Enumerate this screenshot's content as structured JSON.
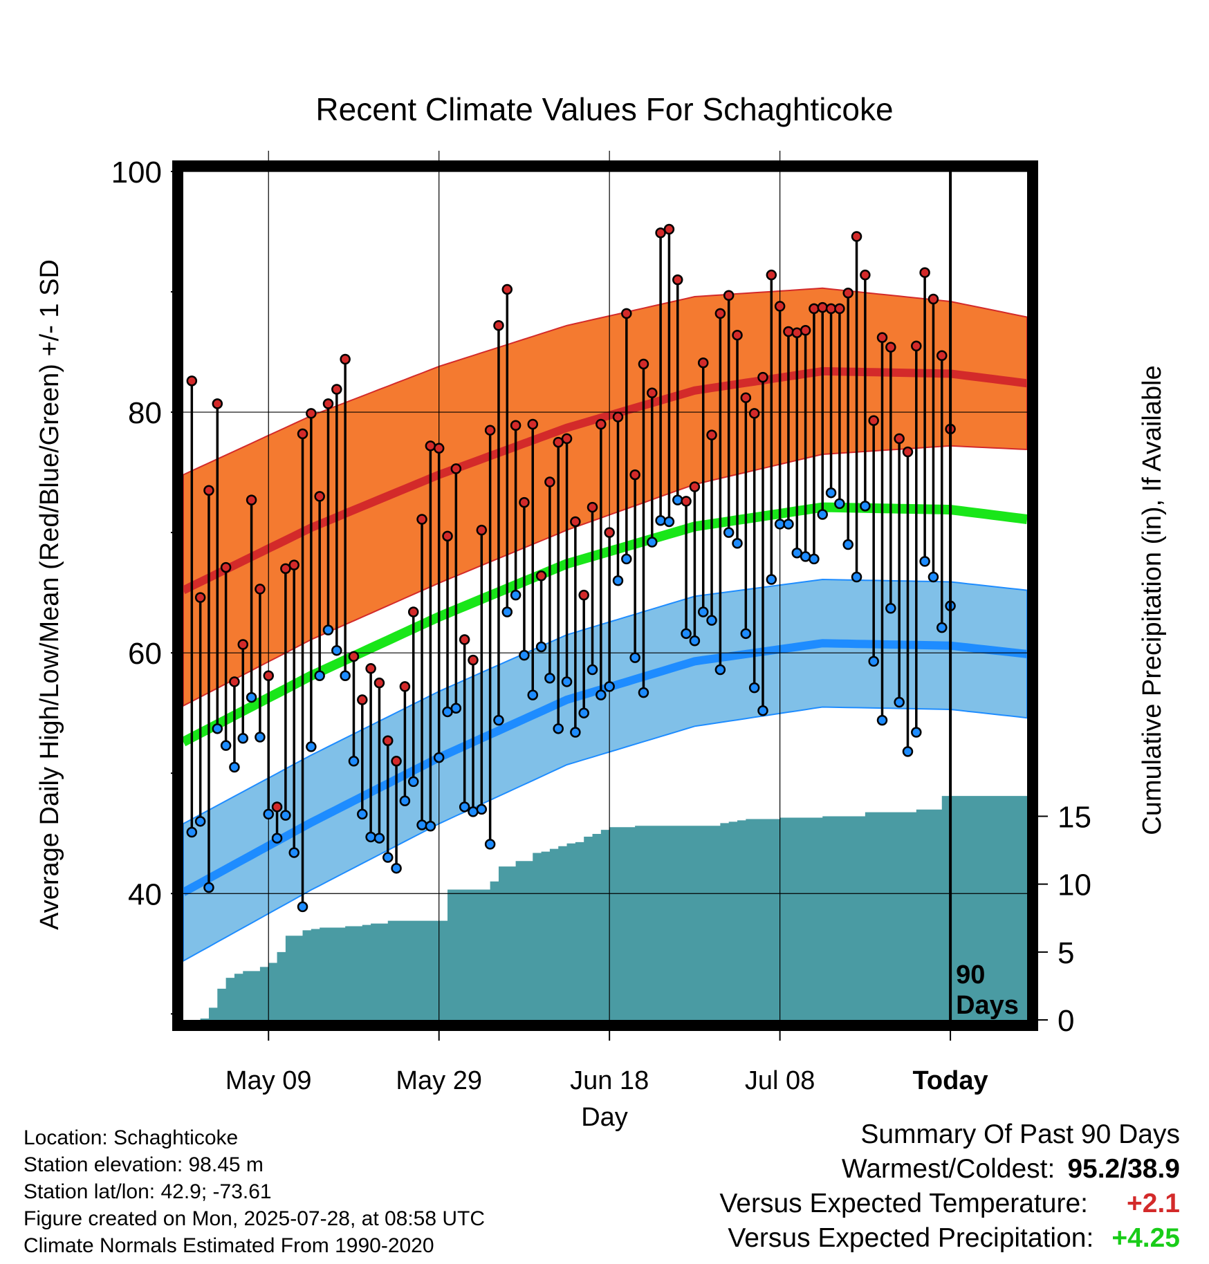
{
  "title": "Recent Climate Values For Schaghticoke",
  "colors": {
    "high_band": "#f47a30",
    "high_line": "#d32a2a",
    "low_band": "#80c0e8",
    "low_line": "#1e8cff",
    "mean_line": "#19e619",
    "precip": "#4a9ba3",
    "high_dot": "#d32a2a",
    "low_dot": "#1e8cff",
    "warm": "#d32a2a",
    "wet": "#19cc19"
  },
  "info": {
    "location": "Location: Schaghticoke",
    "elevation": "Station elevation: 98.45 m",
    "latlon": "Station lat/lon: 42.9; -73.61",
    "created": "Figure created on Mon, 2025-07-28, at 08:58 UTC",
    "normals": "Climate Normals Estimated From 1990-2020"
  },
  "summary": {
    "heading": "Summary Of Past 90 Days",
    "warmest_label": "Warmest/Coldest:",
    "warmest_value": "95.2/38.9",
    "temp_label": "Versus Expected Temperature:",
    "temp_value": "+2.1",
    "precip_label": "Versus Expected Precipitation:",
    "precip_value": "+4.25"
  },
  "chart_data": {
    "type": "line",
    "title": "Recent Climate Values For Schaghticoke",
    "xlabel": "Day",
    "ylabel": "Average Daily High/Low/Mean (Red/Blue/Green) +/- 1 SD",
    "y2label": "Cumulative Precipitation (in), If Available",
    "xlim": [
      -90,
      9
    ],
    "ylim": [
      29.5,
      100
    ],
    "y2lim": [
      0,
      62.5
    ],
    "x_ticks": [
      {
        "x": -80,
        "label": "May 09"
      },
      {
        "x": -60,
        "label": "May 29"
      },
      {
        "x": -40,
        "label": "Jun 18"
      },
      {
        "x": -20,
        "label": "Jul 08"
      },
      {
        "x": 0,
        "label": "Today"
      }
    ],
    "y_ticks": [
      40,
      60,
      80,
      100
    ],
    "y2_ticks": [
      0,
      5,
      10,
      15
    ],
    "today_marker": "90\nDays",
    "grid": true,
    "normals": {
      "x": [
        -90,
        -75,
        -60,
        -45,
        -30,
        -15,
        0,
        9
      ],
      "high_mean": [
        65.2,
        70.4,
        74.8,
        78.7,
        81.8,
        83.4,
        83.2,
        82.4
      ],
      "high_sd": [
        9.6,
        9.3,
        9.0,
        8.5,
        7.8,
        6.9,
        6.0,
        5.5
      ],
      "low_mean": [
        40.1,
        45.9,
        51.3,
        56.1,
        59.3,
        60.8,
        60.6,
        59.9
      ],
      "low_sd": [
        5.7,
        5.6,
        5.5,
        5.4,
        5.4,
        5.3,
        5.3,
        5.3
      ],
      "mean": [
        52.6,
        58.1,
        63.0,
        67.4,
        70.5,
        72.1,
        71.9,
        71.1
      ]
    },
    "series": [
      {
        "name": "High",
        "values": [
          82.6,
          64.6,
          73.5,
          80.7,
          67.1,
          57.6,
          60.7,
          72.7,
          65.3,
          58.1,
          47.2,
          67.0,
          67.3,
          78.2,
          79.9,
          73.0,
          80.7,
          81.9,
          84.4,
          59.7,
          56.1,
          58.7,
          57.5,
          52.7,
          51.0,
          57.2,
          63.4,
          71.1,
          77.2,
          77.0,
          69.7,
          75.3,
          61.1,
          59.4,
          70.2,
          78.5,
          87.2,
          90.2,
          78.9,
          72.5,
          79.0,
          66.4,
          74.2,
          77.5,
          77.8,
          70.9,
          64.8,
          72.1,
          79.0,
          70.0,
          79.6,
          88.2,
          74.8,
          84.0,
          81.6,
          94.9,
          95.2,
          91.0,
          72.6,
          73.8,
          84.1,
          78.1,
          88.2,
          89.7,
          86.4,
          81.2,
          79.9,
          82.9,
          91.4,
          88.8,
          86.7,
          86.6,
          86.8,
          88.6,
          88.7,
          88.6,
          88.6,
          89.9,
          94.6,
          91.4,
          79.3,
          86.2,
          85.4,
          77.8,
          76.7,
          85.5,
          91.6,
          89.4,
          84.7,
          78.6
        ]
      },
      {
        "name": "Low",
        "values": [
          45.1,
          46.0,
          40.5,
          53.7,
          52.3,
          50.5,
          52.9,
          56.3,
          53.0,
          46.6,
          44.6,
          46.5,
          43.4,
          38.9,
          52.2,
          58.1,
          61.9,
          60.2,
          58.1,
          51.0,
          46.6,
          44.7,
          44.6,
          43.0,
          42.1,
          47.7,
          49.3,
          45.7,
          45.6,
          51.3,
          55.1,
          55.4,
          47.2,
          46.8,
          47.0,
          44.1,
          54.4,
          63.4,
          64.8,
          59.8,
          56.5,
          60.5,
          57.9,
          53.7,
          57.6,
          53.4,
          55.0,
          58.6,
          56.5,
          57.2,
          66.0,
          67.8,
          59.6,
          56.7,
          69.2,
          71.0,
          70.9,
          72.7,
          61.6,
          61.0,
          63.4,
          62.7,
          58.6,
          70.0,
          69.1,
          61.6,
          57.1,
          55.2,
          66.1,
          70.7,
          70.7,
          68.3,
          68.0,
          67.8,
          71.5,
          73.3,
          72.4,
          69.0,
          66.3,
          72.2,
          59.3,
          54.4,
          63.7,
          55.9,
          51.8,
          53.4,
          67.6,
          66.3,
          62.1,
          63.9
        ]
      }
    ],
    "precip": {
      "x": [
        -90,
        -88,
        -87,
        -86,
        -85,
        -84,
        -83,
        -81,
        -80,
        -79,
        -78,
        -76,
        -75,
        -74,
        -73,
        -72,
        -71,
        -70,
        -69,
        -68,
        -66,
        -65,
        -64,
        -63,
        -62,
        -61,
        -60,
        -59,
        -58,
        -57,
        -56,
        -55,
        -54,
        -53,
        -52,
        -51,
        -49,
        -48,
        -47,
        -46,
        -45,
        -44,
        -43,
        -42,
        -41,
        -40,
        -39,
        -37,
        -30,
        -27,
        -26,
        -25,
        -24,
        -21,
        -20,
        -18,
        -17,
        -15,
        -12,
        -11,
        -10,
        -9,
        -7,
        -6,
        -5,
        -4,
        -2,
        -1,
        0,
        9
      ],
      "values": [
        0.0,
        0.1,
        0.9,
        2.3,
        3.1,
        3.4,
        3.6,
        3.9,
        4.2,
        5.0,
        6.2,
        6.6,
        6.7,
        6.8,
        6.8,
        6.8,
        6.9,
        6.9,
        7.0,
        7.1,
        7.3,
        7.3,
        7.3,
        7.3,
        7.3,
        7.3,
        7.3,
        9.6,
        9.6,
        9.6,
        9.6,
        9.6,
        10.2,
        11.3,
        11.3,
        11.7,
        12.3,
        12.4,
        12.6,
        12.8,
        13.0,
        13.1,
        13.5,
        13.7,
        14.0,
        14.2,
        14.2,
        14.3,
        14.3,
        14.5,
        14.6,
        14.7,
        14.8,
        14.8,
        14.9,
        14.9,
        14.9,
        15.0,
        15.0,
        15.0,
        15.3,
        15.3,
        15.3,
        15.3,
        15.3,
        15.5,
        15.5,
        16.5,
        16.5,
        16.5
      ]
    }
  }
}
